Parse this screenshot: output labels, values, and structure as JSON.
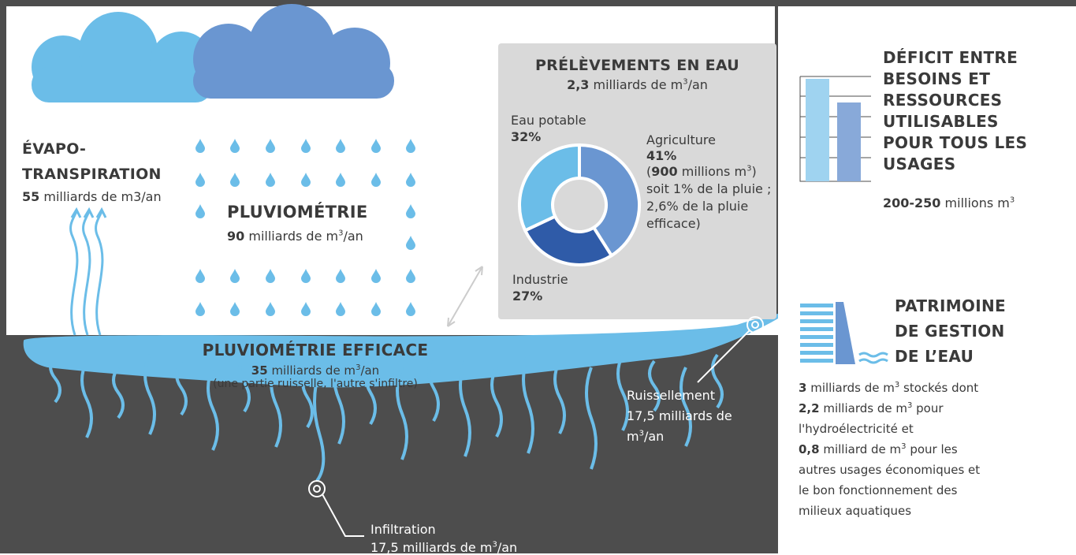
{
  "chart_data": {
    "type": "donut",
    "title": "PRÉLÈVEMENTS EN EAU",
    "subtitle": {
      "number": "2,3",
      "unit": "milliards de m",
      "sup": "3",
      "tail": "/an"
    },
    "categories": [
      "Agriculture",
      "Industrie",
      "Eau potable"
    ],
    "values": [
      41,
      27,
      32
    ],
    "value_labels": [
      "41%",
      "27%",
      "32%"
    ],
    "colors": [
      "#6a96d1",
      "#2f5ba8",
      "#6bbde8"
    ]
  },
  "agriculture_note": {
    "open": "(",
    "number": "900",
    "unit": "millions m",
    "sup": "3",
    "close": ")",
    "line2": "soit 1% de la pluie ;",
    "line3": "2,6% de la pluie",
    "line4": "efficace)"
  },
  "evapotranspiration": {
    "title1": "ÉVAPO-",
    "title2": "TRANSPIRATION",
    "number": "55",
    "unit": "milliards de m3/an"
  },
  "pluviometrie": {
    "title": "PLUVIOMÉTRIE",
    "number": "90",
    "unit": "milliards de m",
    "sup": "3",
    "tail": "/an"
  },
  "pluviometrie_efficace": {
    "title": "PLUVIOMÉTRIE EFFICACE",
    "number": "35",
    "unit": "milliards de m",
    "sup": "3",
    "tail": "/an",
    "note": "(une partie ruisselle, l'autre s'infiltre)"
  },
  "ruissellement": {
    "title": "Ruissellement",
    "line2": "17,5 milliards de",
    "unit": "m",
    "sup": "3",
    "tail": "/an"
  },
  "infiltration": {
    "title": "Infiltration",
    "unit": "17,5 milliards de m",
    "sup": "3",
    "tail": "/an"
  },
  "deficit": {
    "lines": [
      "DÉFICIT ENTRE",
      "BESOINS ET",
      "RESSOURCES",
      "UTILISABLES",
      "POUR TOUS LES",
      "USAGES"
    ],
    "number": "200-250",
    "unit": "millions m",
    "sup": "3"
  },
  "patrimoine": {
    "lines": [
      "PATRIMOINE",
      "DE GESTION",
      "DE L’EAU"
    ],
    "body": [
      {
        "number": "3",
        "unit": "milliards de m",
        "sup": "3",
        "tail": "stockés dont"
      },
      {
        "number": "2,2",
        "unit": "milliards de m",
        "sup": "3",
        "tail": "pour"
      },
      {
        "text": "l'hydroélectricité et"
      },
      {
        "number": "0,8",
        "unit": "milliard de m",
        "sup": "3",
        "tail": "pour les"
      },
      {
        "text": "autres usages économiques et"
      },
      {
        "text": "le bon fonctionnement des"
      },
      {
        "text": "milieux aquatiques"
      }
    ]
  }
}
